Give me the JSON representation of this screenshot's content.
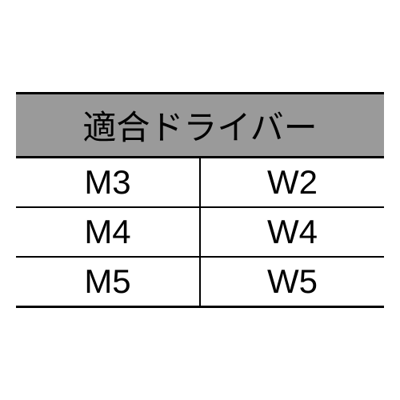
{
  "table": {
    "header": "適合ドライバー",
    "header_bg": "#9a9a9a",
    "header_fontsize": 42,
    "cell_fontsize": 42,
    "border_color": "#000000",
    "outer_border_width": 3,
    "inner_border_width": 2,
    "background_color": "#ffffff",
    "columns": [
      "col1",
      "col2"
    ],
    "rows": [
      {
        "col1": "M3",
        "col2": "W2"
      },
      {
        "col1": "M4",
        "col2": "W4"
      },
      {
        "col1": "M5",
        "col2": "W5"
      }
    ]
  }
}
